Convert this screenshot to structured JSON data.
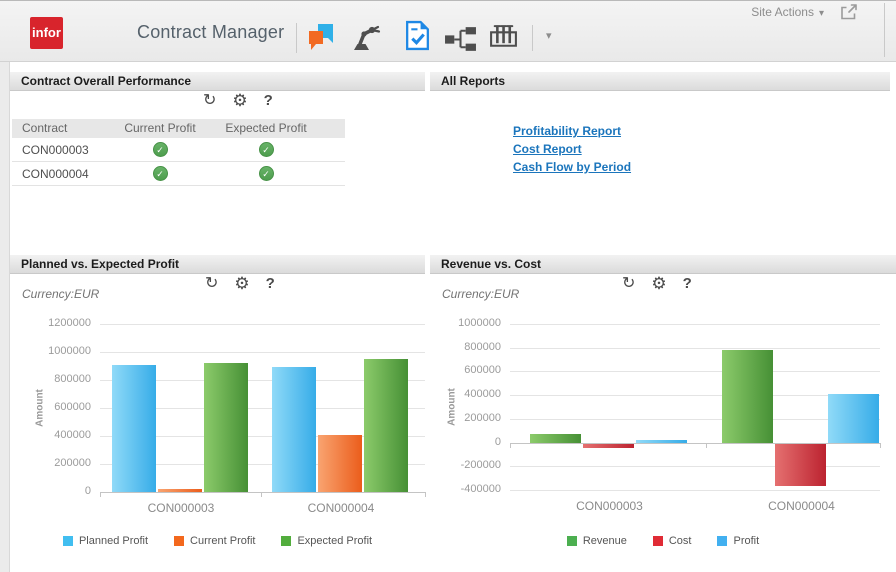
{
  "topbar": {
    "logo_text": "infor",
    "app_title": "Contract Manager",
    "site_actions_label": "Site Actions",
    "toolbar_icon_names": [
      "chat-messages",
      "robot-arm",
      "checked-document",
      "org-chart",
      "test-tubes",
      "more-dropdown"
    ],
    "share_icon_name": "open-new-window"
  },
  "icons": {
    "refresh_glyph": "↻",
    "settings_glyph": "⚙",
    "help_glyph": "?",
    "caret_glyph": "▾",
    "check_glyph": "✓"
  },
  "panels": {
    "performance": {
      "title": "Contract Overall Performance",
      "table": {
        "columns": [
          "Contract",
          "Current Profit",
          "Expected Profit"
        ],
        "rows": [
          {
            "contract": "CON000003",
            "current_profit": "ok",
            "expected_profit": "ok"
          },
          {
            "contract": "CON000004",
            "current_profit": "ok",
            "expected_profit": "ok"
          }
        ]
      }
    },
    "reports": {
      "title": "All Reports",
      "links": [
        "Profitability Report",
        "Cost Report",
        "Cash Flow by Period"
      ]
    }
  },
  "chart_data": [
    {
      "type": "bar",
      "title": "Planned vs. Expected Profit",
      "currency_label": "Currency:EUR",
      "ylabel": "Amount",
      "categories": [
        "CON000003",
        "CON000004"
      ],
      "series": [
        {
          "name": "Planned Profit",
          "values": [
            910000,
            890000
          ],
          "legend_color": "#41BEF0",
          "color_light": "#90DAF8",
          "color_dark": "#36ACE8"
        },
        {
          "name": "Current Profit",
          "values": [
            20000,
            405000
          ],
          "legend_color": "#F3681D",
          "color_light": "#F9A471",
          "color_dark": "#EB5D1B"
        },
        {
          "name": "Expected Profit",
          "values": [
            920000,
            950000
          ],
          "legend_color": "#52AD3D",
          "color_light": "#8CCB6B",
          "color_dark": "#469035"
        }
      ],
      "ylim": [
        0,
        1200000
      ],
      "ytick_step": 200000,
      "grid": true,
      "legend_position": "bottom"
    },
    {
      "type": "bar",
      "title": "Revenue vs. Cost",
      "currency_label": "Currency:EUR",
      "ylabel": "Amount",
      "categories": [
        "CON000003",
        "CON000004"
      ],
      "series": [
        {
          "name": "Revenue",
          "values": [
            70000,
            780000
          ],
          "legend_color": "#4CAF50",
          "color_light": "#8CCB6B",
          "color_dark": "#469035"
        },
        {
          "name": "Cost",
          "values": [
            -50000,
            -370000
          ],
          "legend_color": "#E02B35",
          "color_light": "#E57070",
          "color_dark": "#BC2330"
        },
        {
          "name": "Profit",
          "values": [
            20000,
            410000
          ],
          "legend_color": "#42B0F0",
          "color_light": "#90DAF8",
          "color_dark": "#36ACE8"
        }
      ],
      "ylim": [
        -400000,
        1000000
      ],
      "ytick_step": 200000,
      "grid": true,
      "legend_position": "bottom"
    }
  ],
  "colors": {
    "brand_red": "#D8242C",
    "link_blue": "#1B75BC",
    "status_ok_green": "#57A957",
    "bar_blue": "#41BEF0",
    "bar_orange": "#F3681D",
    "bar_green": "#52AD3D",
    "bar_red": "#D23540"
  }
}
